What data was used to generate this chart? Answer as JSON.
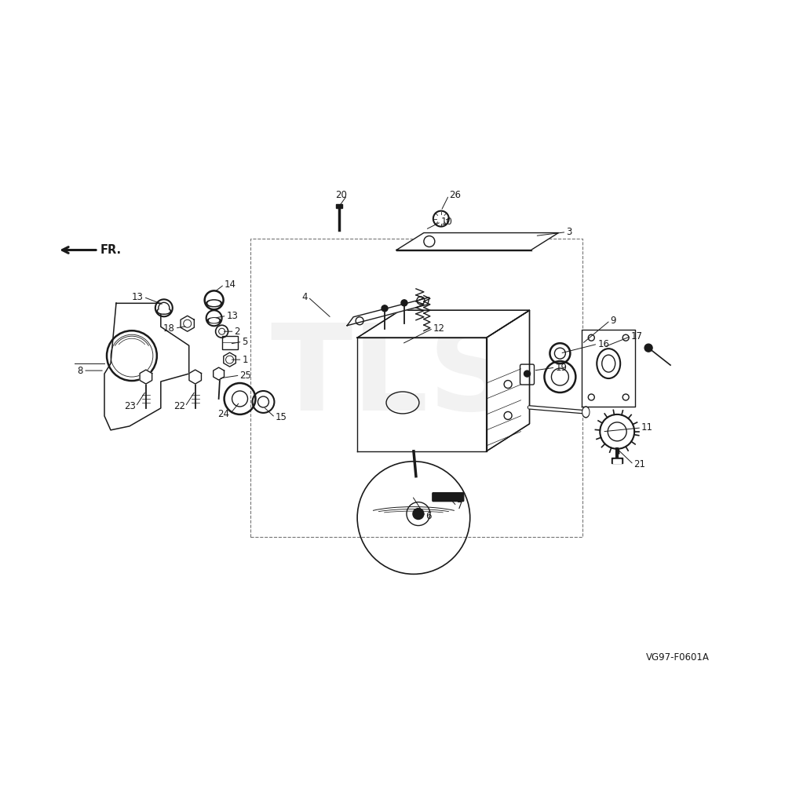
{
  "bg_color": "#ffffff",
  "line_color": "#1a1a1a",
  "text_color": "#1a1a1a",
  "watermark_color": "#cccccc",
  "watermark_text": "TLS",
  "diagram_label": "VG97-F0601A",
  "fr_label": "FR."
}
